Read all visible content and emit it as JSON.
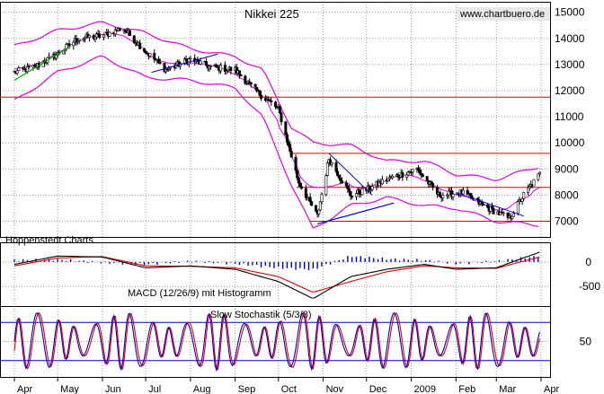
{
  "chart_data": [
    {
      "type": "candlestick",
      "title": "Nikkei 225",
      "source_label": "www.chartbuero.de",
      "publisher_label": "Hoppenstedt Charts",
      "x_ticks": [
        "Apr",
        "May",
        "Jun",
        "Jul",
        "Aug",
        "Sep",
        "Oct",
        "Nov",
        "Dec",
        "2009",
        "Feb",
        "Mar",
        "Apr"
      ],
      "y_ticks": [
        7000,
        8000,
        9000,
        10000,
        11000,
        12000,
        13000,
        14000,
        15000
      ],
      "y_range": [
        6400,
        15400
      ],
      "grid": true,
      "colors": {
        "bands": "#e000e0",
        "support_lines": "#e00000",
        "trend_green": "#00aa00",
        "trend_blue": "#0000cc"
      },
      "price_series": [
        [
          "2008-04-01",
          12700
        ],
        [
          "2008-04-15",
          12900
        ],
        [
          "2008-05-01",
          13400
        ],
        [
          "2008-05-15",
          14000
        ],
        [
          "2008-06-01",
          14100
        ],
        [
          "2008-06-15",
          14400
        ],
        [
          "2008-07-01",
          13500
        ],
        [
          "2008-07-15",
          12800
        ],
        [
          "2008-08-01",
          13200
        ],
        [
          "2008-08-15",
          12900
        ],
        [
          "2008-09-01",
          12800
        ],
        [
          "2008-09-15",
          12000
        ],
        [
          "2008-10-01",
          11300
        ],
        [
          "2008-10-15",
          8500
        ],
        [
          "2008-10-28",
          7200
        ],
        [
          "2008-11-05",
          9400
        ],
        [
          "2008-11-20",
          8000
        ],
        [
          "2008-12-01",
          8200
        ],
        [
          "2008-12-15",
          8600
        ],
        [
          "2009-01-05",
          9000
        ],
        [
          "2009-01-20",
          8000
        ],
        [
          "2009-02-05",
          8100
        ],
        [
          "2009-02-20",
          7600
        ],
        [
          "2009-03-10",
          7100
        ],
        [
          "2009-03-20",
          8000
        ],
        [
          "2009-03-31",
          8800
        ]
      ],
      "horizontal_levels": [
        11750,
        9600,
        8300,
        7000
      ],
      "bollinger_upper": [
        [
          "2008-04-01",
          13700
        ],
        [
          "2008-05-01",
          14300
        ],
        [
          "2008-06-01",
          14600
        ],
        [
          "2008-07-01",
          14200
        ],
        [
          "2008-08-01",
          13600
        ],
        [
          "2008-09-01",
          13300
        ],
        [
          "2008-09-20",
          12800
        ],
        [
          "2008-10-10",
          10600
        ],
        [
          "2008-10-25",
          10000
        ],
        [
          "2008-11-20",
          9900
        ],
        [
          "2008-12-15",
          9300
        ],
        [
          "2009-01-10",
          9300
        ],
        [
          "2009-02-01",
          8800
        ],
        [
          "2009-03-01",
          8600
        ],
        [
          "2009-03-31",
          9100
        ]
      ],
      "bollinger_lower": [
        [
          "2008-04-01",
          11600
        ],
        [
          "2008-05-01",
          12700
        ],
        [
          "2008-06-01",
          13300
        ],
        [
          "2008-07-01",
          12500
        ],
        [
          "2008-08-01",
          12400
        ],
        [
          "2008-09-01",
          12100
        ],
        [
          "2008-09-20",
          11000
        ],
        [
          "2008-10-10",
          8400
        ],
        [
          "2008-10-25",
          6700
        ],
        [
          "2008-11-20",
          7600
        ],
        [
          "2008-12-15",
          7900
        ],
        [
          "2009-01-10",
          7600
        ],
        [
          "2009-02-01",
          7500
        ],
        [
          "2009-03-01",
          7000
        ],
        [
          "2009-03-31",
          6850
        ]
      ],
      "trend_green": [
        [
          "2008-04-01",
          12400
        ],
        [
          "2008-05-10",
          13700
        ]
      ],
      "trend_blue": [
        [
          "2008-10-28",
          6900
        ],
        [
          "2008-12-20",
          7700
        ]
      ]
    },
    {
      "type": "line",
      "title": "MACD (12/26/9) mit Histogramm",
      "y_ticks": [
        0,
        -500
      ],
      "y_range": [
        -900,
        400
      ],
      "macd": [
        [
          "2008-04-01",
          -50
        ],
        [
          "2008-05-01",
          120
        ],
        [
          "2008-06-01",
          100
        ],
        [
          "2008-07-01",
          -120
        ],
        [
          "2008-08-01",
          -80
        ],
        [
          "2008-09-01",
          -150
        ],
        [
          "2008-10-01",
          -400
        ],
        [
          "2008-10-25",
          -750
        ],
        [
          "2008-11-20",
          -300
        ],
        [
          "2008-12-15",
          -150
        ],
        [
          "2009-01-10",
          -50
        ],
        [
          "2009-02-01",
          -150
        ],
        [
          "2009-03-01",
          -120
        ],
        [
          "2009-03-31",
          200
        ]
      ],
      "signal": [
        [
          "2008-04-01",
          -80
        ],
        [
          "2008-05-01",
          80
        ],
        [
          "2008-06-01",
          110
        ],
        [
          "2008-07-01",
          -80
        ],
        [
          "2008-08-01",
          -90
        ],
        [
          "2008-09-01",
          -120
        ],
        [
          "2008-10-01",
          -300
        ],
        [
          "2008-10-25",
          -620
        ],
        [
          "2008-11-20",
          -400
        ],
        [
          "2008-12-15",
          -200
        ],
        [
          "2009-01-10",
          -80
        ],
        [
          "2009-02-01",
          -120
        ],
        [
          "2009-03-01",
          -130
        ],
        [
          "2009-03-31",
          100
        ]
      ]
    },
    {
      "type": "line",
      "title": "Slow Stochastik (5/3/3)",
      "y_ticks": [
        50
      ],
      "y_range": [
        0,
        100
      ],
      "reference_levels": [
        80,
        20
      ],
      "oscillation_count": 28
    }
  ]
}
